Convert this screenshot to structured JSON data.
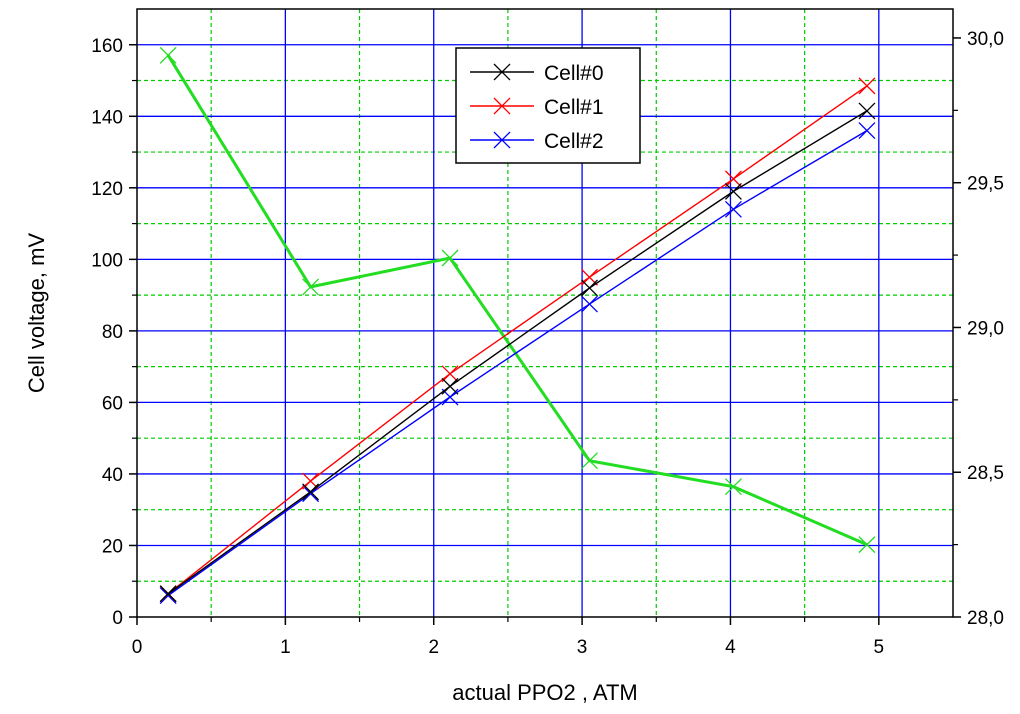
{
  "chart_data": {
    "type": "line",
    "title": "",
    "xlabel": "actual PPO2 , ATM",
    "ylabel": "Cell voltage, mV",
    "y2label": "",
    "xlim": [
      0,
      5.5
    ],
    "ylim": [
      0,
      170
    ],
    "y2lim": [
      28.0,
      30.1
    ],
    "xticks": [
      0,
      1,
      2,
      3,
      4,
      5
    ],
    "yticks": [
      0,
      20,
      40,
      60,
      80,
      100,
      120,
      140,
      160
    ],
    "y2ticks": [
      28.0,
      28.5,
      29.0,
      29.5,
      30.0
    ],
    "xtick_labels": [
      "0",
      "1",
      "2",
      "3",
      "4",
      "5"
    ],
    "ytick_labels": [
      "0",
      "20",
      "40",
      "60",
      "80",
      "100",
      "120",
      "140",
      "160"
    ],
    "y2tick_labels": [
      "28,0",
      "28,5",
      "29,0",
      "29,5",
      "30,0"
    ],
    "grid": true,
    "legend_position": "top-center",
    "series": [
      {
        "name": "Cell#0",
        "axis": "left",
        "color": "#000000",
        "x": [
          0.21,
          1.17,
          2.11,
          3.05,
          4.02,
          4.92
        ],
        "y": [
          6.5,
          35,
          64.5,
          92,
          119,
          141.5
        ]
      },
      {
        "name": "Cell#1",
        "axis": "left",
        "color": "#ff0000",
        "x": [
          0.21,
          1.17,
          2.11,
          3.05,
          4.02,
          4.92
        ],
        "y": [
          6.5,
          38,
          68,
          95,
          122.5,
          148.5
        ]
      },
      {
        "name": "Cell#2",
        "axis": "left",
        "color": "#0000ff",
        "x": [
          0.21,
          1.17,
          2.11,
          3.05,
          4.02,
          4.92
        ],
        "y": [
          6,
          34.5,
          61.5,
          87.5,
          114,
          136
        ]
      },
      {
        "axis": "right",
        "color": "#22dd22",
        "x": [
          0.21,
          1.17,
          2.11,
          3.05,
          4.02,
          4.92
        ],
        "y": [
          29.94,
          29.14,
          29.24,
          28.54,
          28.45,
          28.25
        ]
      }
    ],
    "colors": {
      "major_grid": "#0000ff",
      "minor_grid": "#00cc00",
      "frame": "#000000"
    }
  }
}
